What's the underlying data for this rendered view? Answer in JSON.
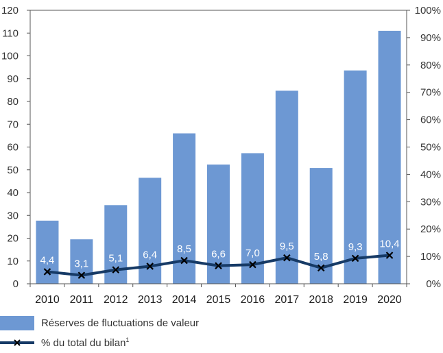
{
  "chart_data": {
    "type": "bar+line",
    "categories": [
      "2010",
      "2011",
      "2012",
      "2013",
      "2014",
      "2015",
      "2016",
      "2017",
      "2018",
      "2019",
      "2020"
    ],
    "bar_series": {
      "name": "Réserves de fluctuations de valeur",
      "values": [
        27.7,
        19.5,
        34.5,
        46.5,
        66.0,
        52.3,
        57.3,
        84.7,
        50.8,
        93.6,
        111.0
      ],
      "axis": "left",
      "color": "#6d98d3"
    },
    "line_series": {
      "name": "% du total du bilan",
      "name_sup": "1",
      "values": [
        4.4,
        3.1,
        5.1,
        6.4,
        8.5,
        6.6,
        7.0,
        9.5,
        5.8,
        9.3,
        10.4
      ],
      "labels": [
        "4,4",
        "3,1",
        "5,1",
        "6,4",
        "8,5",
        "6,6",
        "7,0",
        "9,5",
        "5,8",
        "9,3",
        "10,4"
      ],
      "axis": "right",
      "color": "#163a66",
      "marker": "x"
    },
    "y_left": {
      "min": 0,
      "max": 120,
      "step": 10,
      "ticks": [
        "0",
        "10",
        "20",
        "30",
        "40",
        "50",
        "60",
        "70",
        "80",
        "90",
        "100",
        "110",
        "120"
      ]
    },
    "y_right": {
      "min": 0,
      "max": 100,
      "step": 10,
      "ticks": [
        "0%",
        "10%",
        "20%",
        "30%",
        "40%",
        "50%",
        "60%",
        "70%",
        "80%",
        "90%",
        "100%"
      ]
    },
    "grid": false,
    "legend_placement": "bottom-left"
  }
}
